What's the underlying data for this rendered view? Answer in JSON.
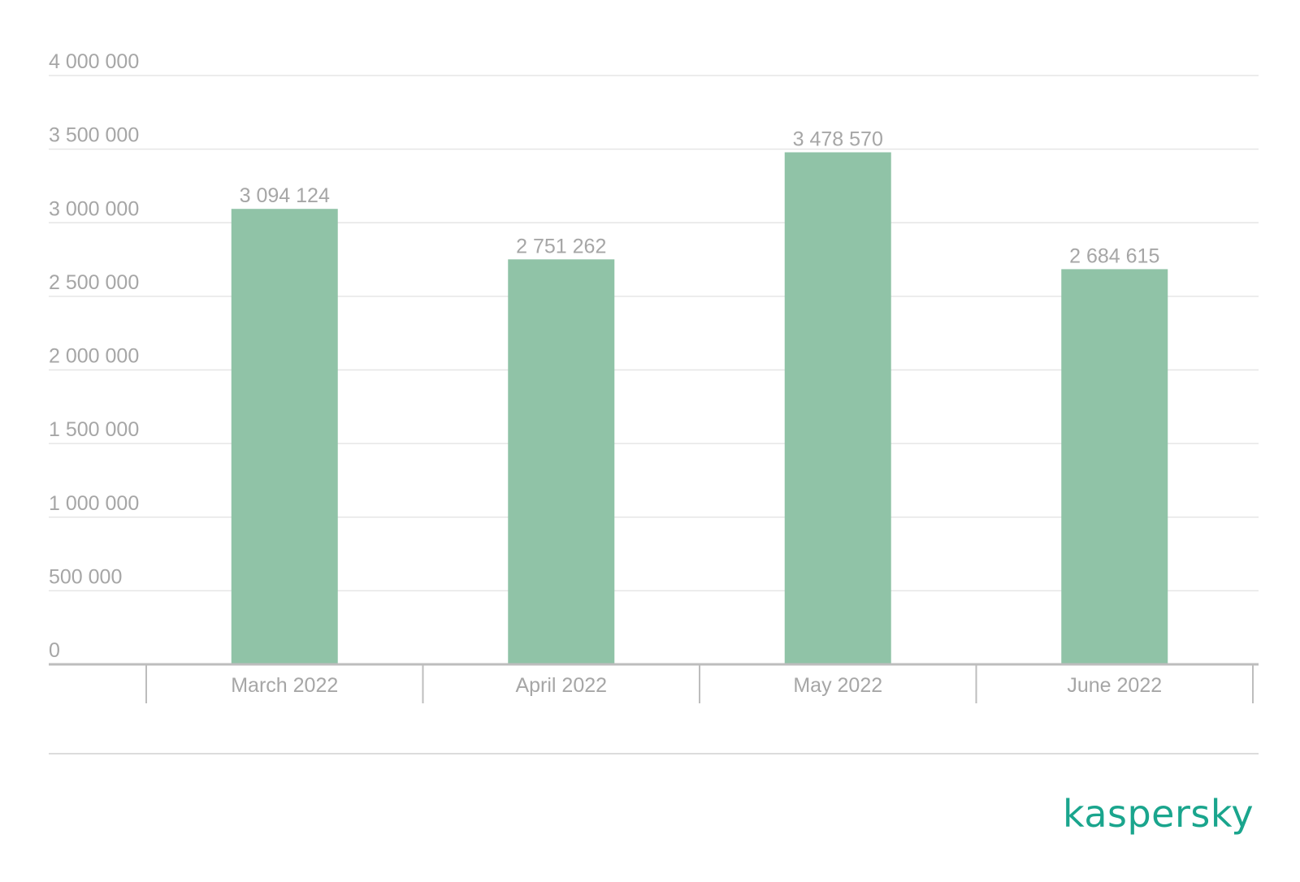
{
  "colors": {
    "bar": "#90c3a7",
    "text": "#a6a6a6",
    "grid": "#e6e6e6",
    "axis": "#bdbdbd",
    "brand": "#1aa58d"
  },
  "brand": {
    "logo_text": "kaspersky"
  },
  "chart_data": {
    "type": "bar",
    "title": "",
    "xlabel": "",
    "ylabel": "",
    "categories": [
      "March 2022",
      "April 2022",
      "May 2022",
      "June 2022"
    ],
    "values": [
      3094124,
      2751262,
      3478570,
      2684615
    ],
    "data_labels": [
      "3 094 124",
      "2 751 262",
      "3 478 570",
      "2 684 615"
    ],
    "ylim": [
      0,
      4000000
    ],
    "yticks": [
      0,
      500000,
      1000000,
      1500000,
      2000000,
      2500000,
      3000000,
      3500000,
      4000000
    ],
    "ytick_labels": [
      "0",
      "500 000",
      "1 000 000",
      "1 500 000",
      "2 000 000",
      "2 500 000",
      "3 000 000",
      "3 500 000",
      "4 000 000"
    ],
    "grid": true,
    "legend": "none"
  }
}
